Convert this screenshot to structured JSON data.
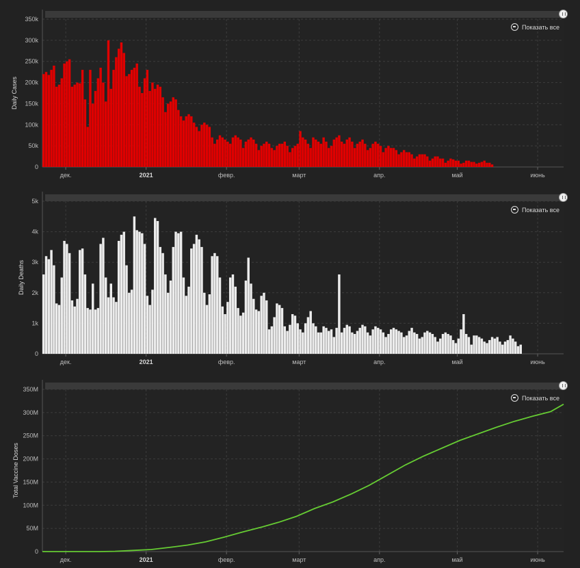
{
  "show_all_label": "Показать все",
  "x_ticks": [
    "дек.",
    "2021",
    "февр.",
    "март",
    "апр.",
    "май",
    "июнь"
  ],
  "colors": {
    "cases": "#e00000",
    "deaths": "#ececec",
    "vaccine": "#66cc33",
    "grid": "#3d3d3d",
    "background": "#222222"
  },
  "chart_data": [
    {
      "type": "bar",
      "ylabel": "Daily Cases",
      "ylim": [
        0,
        350000
      ],
      "y_ticks": [
        "0",
        "50k",
        "100k",
        "150k",
        "200k",
        "250k",
        "300k",
        "350k"
      ],
      "x_range": [
        "2020-11-22",
        "2021-06-11"
      ],
      "x_ticks": [
        {
          "date": "2020-12-01",
          "label": "дек."
        },
        {
          "date": "2021-01-01",
          "label": "2021",
          "bold": true
        },
        {
          "date": "2021-02-01",
          "label": "февр."
        },
        {
          "date": "2021-03-01",
          "label": "март"
        },
        {
          "date": "2021-04-01",
          "label": "апр."
        },
        {
          "date": "2021-05-01",
          "label": "май"
        },
        {
          "date": "2021-06-01",
          "label": "июнь"
        }
      ],
      "start_date": "2020-11-22",
      "values": [
        220000,
        225000,
        218000,
        230000,
        240000,
        190000,
        195000,
        210000,
        245000,
        250000,
        255000,
        190000,
        195000,
        200000,
        198000,
        230000,
        160000,
        95000,
        230000,
        150000,
        180000,
        210000,
        235000,
        200000,
        155000,
        300000,
        185000,
        230000,
        260000,
        280000,
        295000,
        270000,
        215000,
        220000,
        230000,
        235000,
        245000,
        190000,
        175000,
        210000,
        230000,
        180000,
        200000,
        185000,
        195000,
        190000,
        165000,
        130000,
        150000,
        155000,
        165000,
        160000,
        135000,
        120000,
        110000,
        120000,
        125000,
        120000,
        105000,
        95000,
        85000,
        100000,
        105000,
        100000,
        95000,
        70000,
        55000,
        65000,
        75000,
        70000,
        65000,
        60000,
        55000,
        70000,
        75000,
        70000,
        65000,
        45000,
        60000,
        65000,
        70000,
        65000,
        55000,
        40000,
        50000,
        55000,
        60000,
        55000,
        45000,
        40000,
        50000,
        55000,
        55000,
        60000,
        50000,
        35000,
        45000,
        50000,
        55000,
        85000,
        70000,
        65000,
        55000,
        45000,
        70000,
        65000,
        60000,
        55000,
        70000,
        60000,
        45000,
        50000,
        65000,
        70000,
        75000,
        60000,
        55000,
        65000,
        70000,
        60000,
        45000,
        55000,
        60000,
        65000,
        55000,
        40000,
        45000,
        55000,
        60000,
        55000,
        50000,
        35000,
        45000,
        50000,
        45000,
        45000,
        40000,
        30000,
        35000,
        40000,
        35000,
        35000,
        30000,
        20000,
        25000,
        30000,
        30000,
        30000,
        25000,
        15000,
        20000,
        25000,
        25000,
        20000,
        20000,
        10000,
        15000,
        20000,
        18000,
        15000,
        15000,
        8000,
        10000,
        15000,
        15000,
        12000,
        12000,
        8000,
        10000,
        12000,
        15000,
        10000,
        10000,
        6000
      ]
    },
    {
      "type": "bar",
      "ylabel": "Daily Deaths",
      "ylim": [
        0,
        5000
      ],
      "y_ticks": [
        "0",
        "1k",
        "2k",
        "3k",
        "4k",
        "5k"
      ],
      "x_range": [
        "2020-11-22",
        "2021-06-11"
      ],
      "x_ticks": [
        {
          "date": "2020-12-01",
          "label": "дек."
        },
        {
          "date": "2021-01-01",
          "label": "2021",
          "bold": true
        },
        {
          "date": "2021-02-01",
          "label": "февр."
        },
        {
          "date": "2021-03-01",
          "label": "март"
        },
        {
          "date": "2021-04-01",
          "label": "апр."
        },
        {
          "date": "2021-05-01",
          "label": "май"
        },
        {
          "date": "2021-06-01",
          "label": "июнь"
        }
      ],
      "start_date": "2020-11-22",
      "values": [
        2600,
        3200,
        3100,
        3400,
        2900,
        1650,
        1600,
        2500,
        3700,
        3600,
        3300,
        1750,
        1550,
        1800,
        3400,
        3450,
        2600,
        1500,
        1450,
        2300,
        1450,
        1500,
        3600,
        3800,
        2500,
        1850,
        2300,
        1850,
        1700,
        3700,
        3900,
        4000,
        2900,
        2000,
        2100,
        4500,
        4050,
        4000,
        3950,
        3600,
        1900,
        1600,
        2100,
        4450,
        4350,
        3500,
        3300,
        2600,
        2000,
        2400,
        3500,
        4000,
        3950,
        4000,
        2500,
        1900,
        2200,
        3450,
        3600,
        3900,
        3750,
        3500,
        2000,
        1600,
        1950,
        3200,
        3300,
        3200,
        2500,
        1550,
        1300,
        1700,
        2500,
        2600,
        2200,
        1500,
        1250,
        1350,
        2400,
        3150,
        2300,
        1800,
        1450,
        1400,
        1900,
        2000,
        1750,
        800,
        900,
        1200,
        1650,
        1600,
        1500,
        900,
        750,
        950,
        1300,
        1250,
        1000,
        800,
        700,
        1000,
        1200,
        1400,
        1000,
        900,
        700,
        700,
        900,
        850,
        750,
        800,
        550,
        850,
        2600,
        700,
        850,
        950,
        900,
        700,
        650,
        750,
        850,
        950,
        900,
        700,
        600,
        800,
        900,
        850,
        800,
        700,
        550,
        650,
        800,
        850,
        800,
        750,
        700,
        550,
        600,
        750,
        850,
        700,
        650,
        500,
        550,
        700,
        750,
        700,
        650,
        550,
        400,
        500,
        650,
        700,
        650,
        600,
        450,
        350,
        500,
        800,
        1300,
        650,
        550,
        300,
        600,
        600,
        550,
        500,
        400,
        350,
        450,
        550,
        500,
        550,
        400,
        300,
        400,
        450,
        600,
        500,
        400,
        250,
        300
      ]
    },
    {
      "type": "line",
      "ylabel": "Total Vaccine Doses",
      "ylim": [
        0,
        350000000
      ],
      "y_ticks": [
        "0",
        "50M",
        "100M",
        "150M",
        "200M",
        "250M",
        "300M",
        "350M"
      ],
      "x_range": [
        "2020-11-22",
        "2021-06-11"
      ],
      "x_ticks": [
        {
          "date": "2020-12-01",
          "label": "дек."
        },
        {
          "date": "2021-01-01",
          "label": "2021",
          "bold": true
        },
        {
          "date": "2021-02-01",
          "label": "февр."
        },
        {
          "date": "2021-03-01",
          "label": "март"
        },
        {
          "date": "2021-04-01",
          "label": "апр."
        },
        {
          "date": "2021-05-01",
          "label": "май"
        },
        {
          "date": "2021-06-01",
          "label": "июнь"
        }
      ],
      "points": [
        [
          "2020-11-22",
          0
        ],
        [
          "2020-12-14",
          0
        ],
        [
          "2020-12-20",
          600000
        ],
        [
          "2020-12-27",
          2500000
        ],
        [
          "2021-01-03",
          4500000
        ],
        [
          "2021-01-10",
          9000000
        ],
        [
          "2021-01-17",
          14000000
        ],
        [
          "2021-01-24",
          21000000
        ],
        [
          "2021-01-31",
          31000000
        ],
        [
          "2021-02-07",
          42000000
        ],
        [
          "2021-02-14",
          52000000
        ],
        [
          "2021-02-21",
          63000000
        ],
        [
          "2021-02-28",
          76000000
        ],
        [
          "2021-03-07",
          93000000
        ],
        [
          "2021-03-14",
          107000000
        ],
        [
          "2021-03-21",
          124000000
        ],
        [
          "2021-03-28",
          143000000
        ],
        [
          "2021-04-04",
          165000000
        ],
        [
          "2021-04-11",
          187000000
        ],
        [
          "2021-04-18",
          206000000
        ],
        [
          "2021-04-25",
          223000000
        ],
        [
          "2021-05-02",
          240000000
        ],
        [
          "2021-05-09",
          254000000
        ],
        [
          "2021-05-16",
          268000000
        ],
        [
          "2021-05-23",
          281000000
        ],
        [
          "2021-05-30",
          292000000
        ],
        [
          "2021-06-06",
          302000000
        ],
        [
          "2021-06-11",
          318000000
        ]
      ]
    }
  ]
}
